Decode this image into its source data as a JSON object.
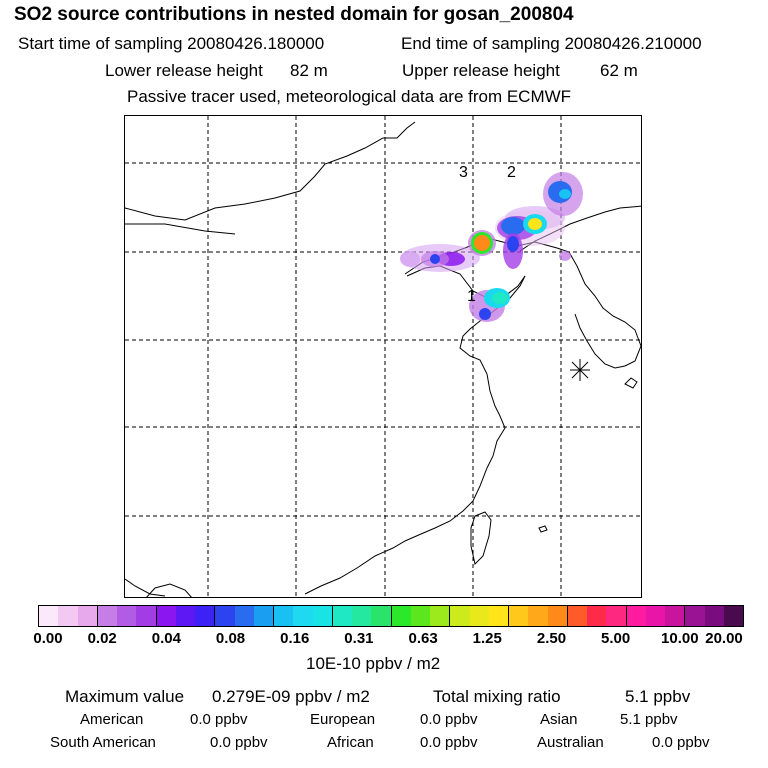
{
  "header": {
    "title": "SO2 source contributions in nested domain for gosan_200804",
    "start_label": "Start time of sampling 20080426.180000",
    "end_label": "End time of sampling 20080426.210000",
    "lower_label": "Lower release height",
    "lower_value": "82 m",
    "upper_label": "Upper release height",
    "upper_value": "62 m",
    "note": "Passive tracer used, meteorological data are from ECMWF"
  },
  "map": {
    "labels": [
      "3",
      "2",
      "1"
    ],
    "receptor_marker": "asterisk-icon"
  },
  "colorbar": {
    "colors": [
      "#fbe9fb",
      "#f3c9f3",
      "#e8a8ec",
      "#c47ee6",
      "#b25be4",
      "#a23de6",
      "#8b16f0",
      "#5d18f4",
      "#3c22f5",
      "#2b44f0",
      "#2a6cef",
      "#1a9ef2",
      "#19c1f3",
      "#1ed9ef",
      "#1ae3e3",
      "#1fe8c5",
      "#25e8a0",
      "#2ae36a",
      "#2be82a",
      "#5ce61e",
      "#9cea1b",
      "#cdea1b",
      "#e8e81b",
      "#ffe41a",
      "#ffc81a",
      "#ffa81a",
      "#ff8a1a",
      "#ff5a2a",
      "#ff2a4a",
      "#ff2880",
      "#ff1aa0",
      "#e815a8",
      "#c9159e",
      "#9a1395",
      "#7a0c7e",
      "#4a0a4e"
    ],
    "ticks": [
      "0.00",
      "0.02",
      "0.04",
      "0.08",
      "0.16",
      "0.31",
      "0.63",
      "1.25",
      "2.50",
      "5.00",
      "10.00",
      "20.00"
    ],
    "unit": "10E-10 ppbv / m2"
  },
  "stats": {
    "max_label": "Maximum value",
    "max_value": "0.279E-09 ppbv / m2",
    "total_label": "Total mixing ratio",
    "total_value": "5.1 ppbv",
    "regions": [
      {
        "name": "American",
        "value": "0.0 ppbv"
      },
      {
        "name": "European",
        "value": "0.0 ppbv"
      },
      {
        "name": "Asian",
        "value": "5.1 ppbv"
      },
      {
        "name": "South American",
        "value": "0.0 ppbv"
      },
      {
        "name": "African",
        "value": "0.0 ppbv"
      },
      {
        "name": "Australian",
        "value": "0.0 ppbv"
      }
    ]
  }
}
